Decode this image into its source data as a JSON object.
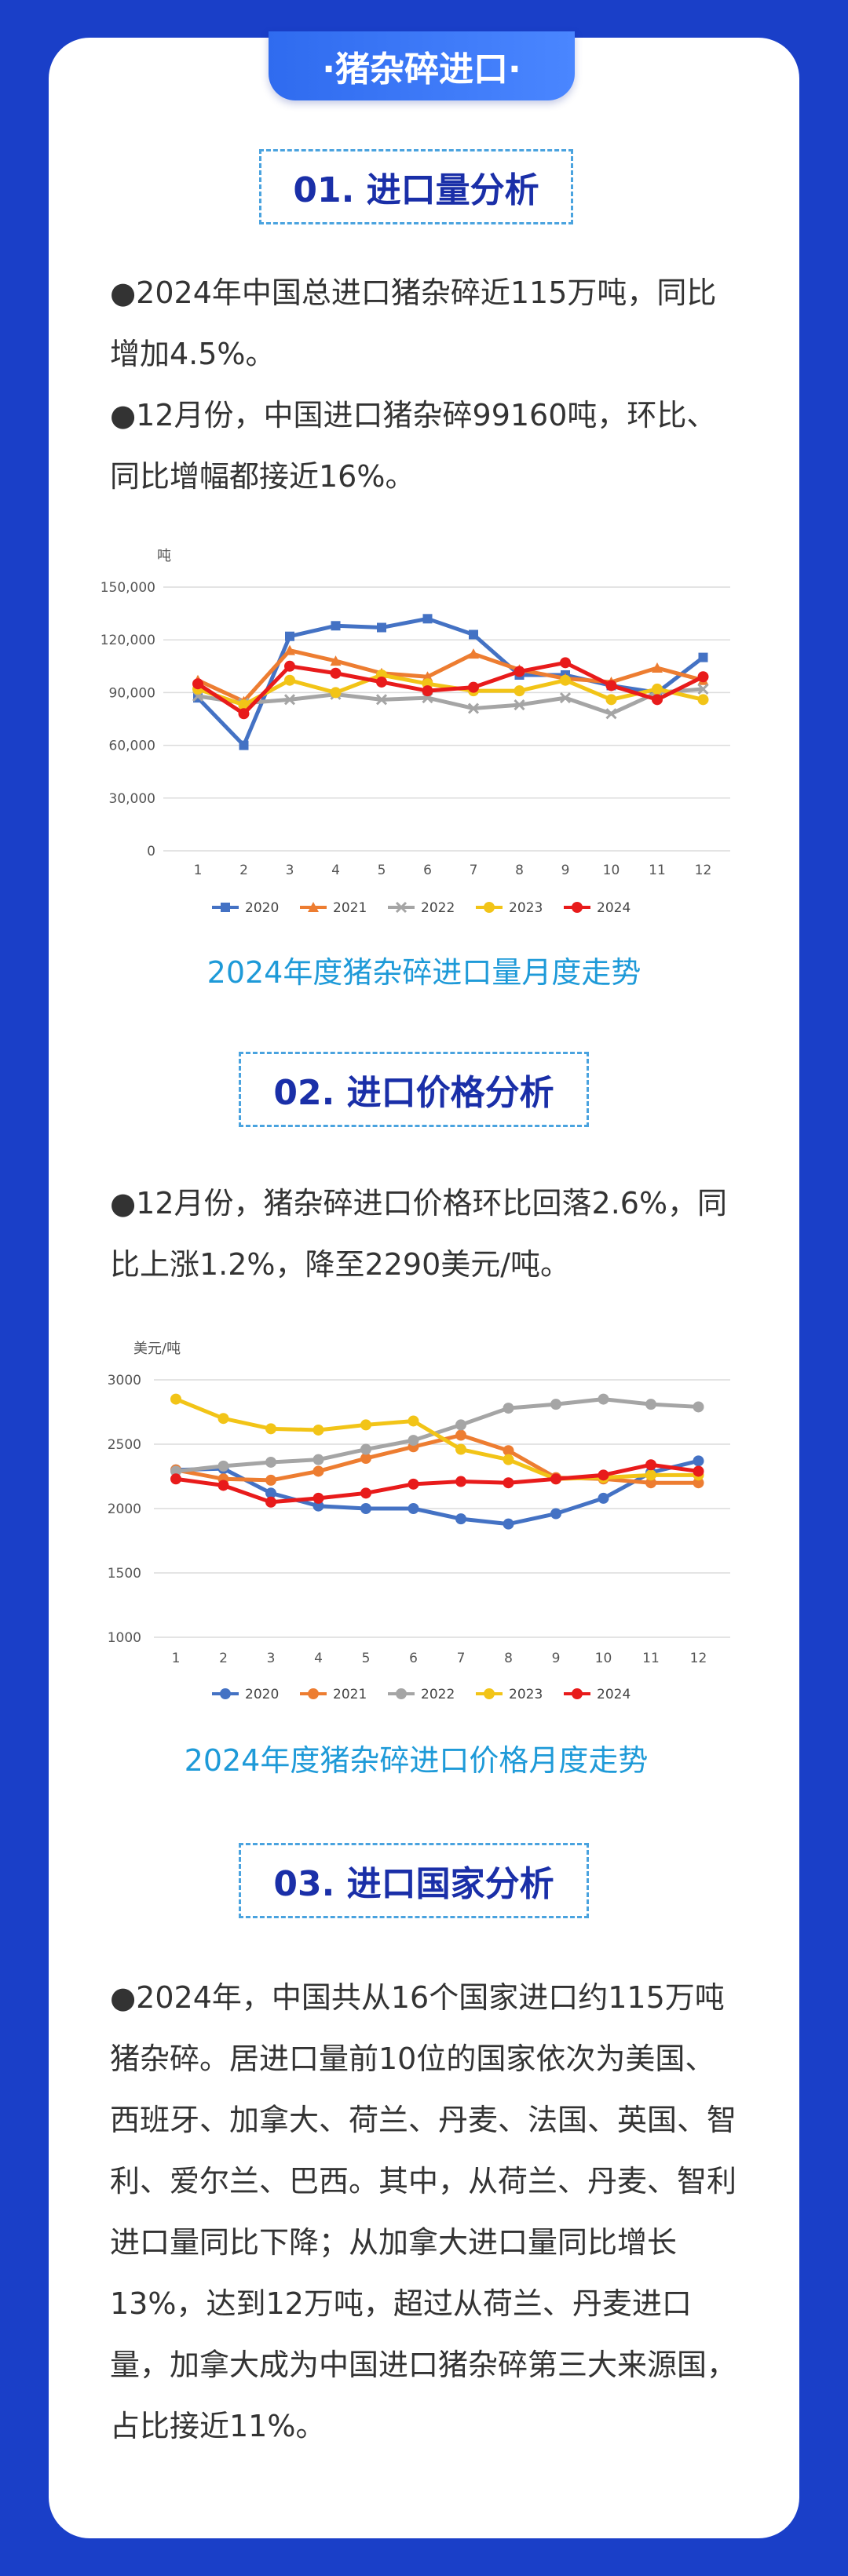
{
  "banner": "·猪杂碎进口·",
  "sections": [
    {
      "title": "01. 进口量分析",
      "paras": [
        "●2024年中国总进口猪杂碎近115万吨，同比增加4.5%。",
        "●12月份，中国进口猪杂碎99160吨，环比、同比增幅都接近16%。"
      ],
      "caption": "2024年度猪杂碎进口量月度走势"
    },
    {
      "title": "02. 进口价格分析",
      "paras": [
        "●12月份，猪杂碎进口价格环比回落2.6%，同比上涨1.2%，降至2290美元/吨。"
      ],
      "caption": "2024年度猪杂碎进口价格月度走势"
    },
    {
      "title": "03. 进口国家分析",
      "paras": [
        "●2024年，中国共从16个国家进口约115万吨猪杂碎。居进口量前10位的国家依次为美国、西班牙、加拿大、荷兰、丹麦、法国、英国、智利、爱尔兰、巴西。其中，从荷兰、丹麦、智利进口量同比下降；从加拿大进口量同比增长13%，达到12万吨，超过从荷兰、丹麦进口量，加拿大成为中国进口猪杂碎第三大来源国，占比接近11%。"
      ]
    }
  ],
  "chart_data": [
    {
      "type": "line",
      "ylabel": "吨",
      "ylim": [
        0,
        150000
      ],
      "yticks": [
        "0",
        "30,000",
        "60,000",
        "90,000",
        "120,000",
        "150,000"
      ],
      "yticks_values": [
        0,
        30000,
        60000,
        90000,
        120000,
        150000
      ],
      "categories": [
        "1",
        "2",
        "3",
        "4",
        "5",
        "6",
        "7",
        "8",
        "9",
        "10",
        "11",
        "12"
      ],
      "legend": "bottom",
      "series": [
        {
          "name": "2020",
          "color": "#4472c4",
          "marker": "square",
          "values": [
            87000,
            60000,
            122000,
            128000,
            127000,
            132000,
            123000,
            100000,
            100000,
            94000,
            90000,
            110000
          ]
        },
        {
          "name": "2021",
          "color": "#ed7d31",
          "marker": "triangle",
          "values": [
            97000,
            85000,
            114000,
            108000,
            101000,
            99000,
            112000,
            103000,
            98000,
            96000,
            104000,
            97000
          ]
        },
        {
          "name": "2022",
          "color": "#a5a5a5",
          "marker": "x",
          "values": [
            88000,
            84000,
            86000,
            89000,
            86000,
            87000,
            81000,
            83000,
            87000,
            78000,
            90000,
            92000
          ]
        },
        {
          "name": "2023",
          "color": "#f2c417",
          "marker": "circle",
          "values": [
            92000,
            83000,
            97000,
            90000,
            100000,
            95000,
            91000,
            91000,
            97000,
            86000,
            92000,
            86000
          ]
        },
        {
          "name": "2024",
          "color": "#e81b1b",
          "marker": "dot",
          "values": [
            95000,
            78000,
            105000,
            101000,
            96000,
            91000,
            93000,
            102000,
            107000,
            94000,
            86000,
            99000
          ]
        }
      ]
    },
    {
      "type": "line",
      "ylabel": "美元/吨",
      "ylim": [
        1000,
        3000
      ],
      "yticks": [
        "1000",
        "1500",
        "2000",
        "2500",
        "3000"
      ],
      "yticks_values": [
        1000,
        1500,
        2000,
        2500,
        3000
      ],
      "categories": [
        "1",
        "2",
        "3",
        "4",
        "5",
        "6",
        "7",
        "8",
        "9",
        "10",
        "11",
        "12"
      ],
      "legend": "bottom",
      "series": [
        {
          "name": "2020",
          "color": "#4472c4",
          "marker": "circle",
          "values": [
            2300,
            2310,
            2120,
            2020,
            2000,
            2000,
            1920,
            1880,
            1960,
            2080,
            2280,
            2370
          ]
        },
        {
          "name": "2021",
          "color": "#ed7d31",
          "marker": "circle",
          "values": [
            2300,
            2230,
            2220,
            2290,
            2390,
            2480,
            2570,
            2450,
            2240,
            2230,
            2200,
            2200
          ]
        },
        {
          "name": "2022",
          "color": "#a5a5a5",
          "marker": "circle",
          "values": [
            2290,
            2330,
            2360,
            2380,
            2460,
            2530,
            2650,
            2780,
            2810,
            2850,
            2810,
            2790
          ]
        },
        {
          "name": "2023",
          "color": "#f2c417",
          "marker": "circle",
          "values": [
            2850,
            2700,
            2620,
            2610,
            2650,
            2680,
            2460,
            2380,
            2230,
            2240,
            2260,
            2260
          ]
        },
        {
          "name": "2024",
          "color": "#e81b1b",
          "marker": "circle",
          "values": [
            2230,
            2180,
            2050,
            2080,
            2120,
            2190,
            2210,
            2200,
            2230,
            2260,
            2340,
            2290
          ]
        }
      ]
    }
  ]
}
